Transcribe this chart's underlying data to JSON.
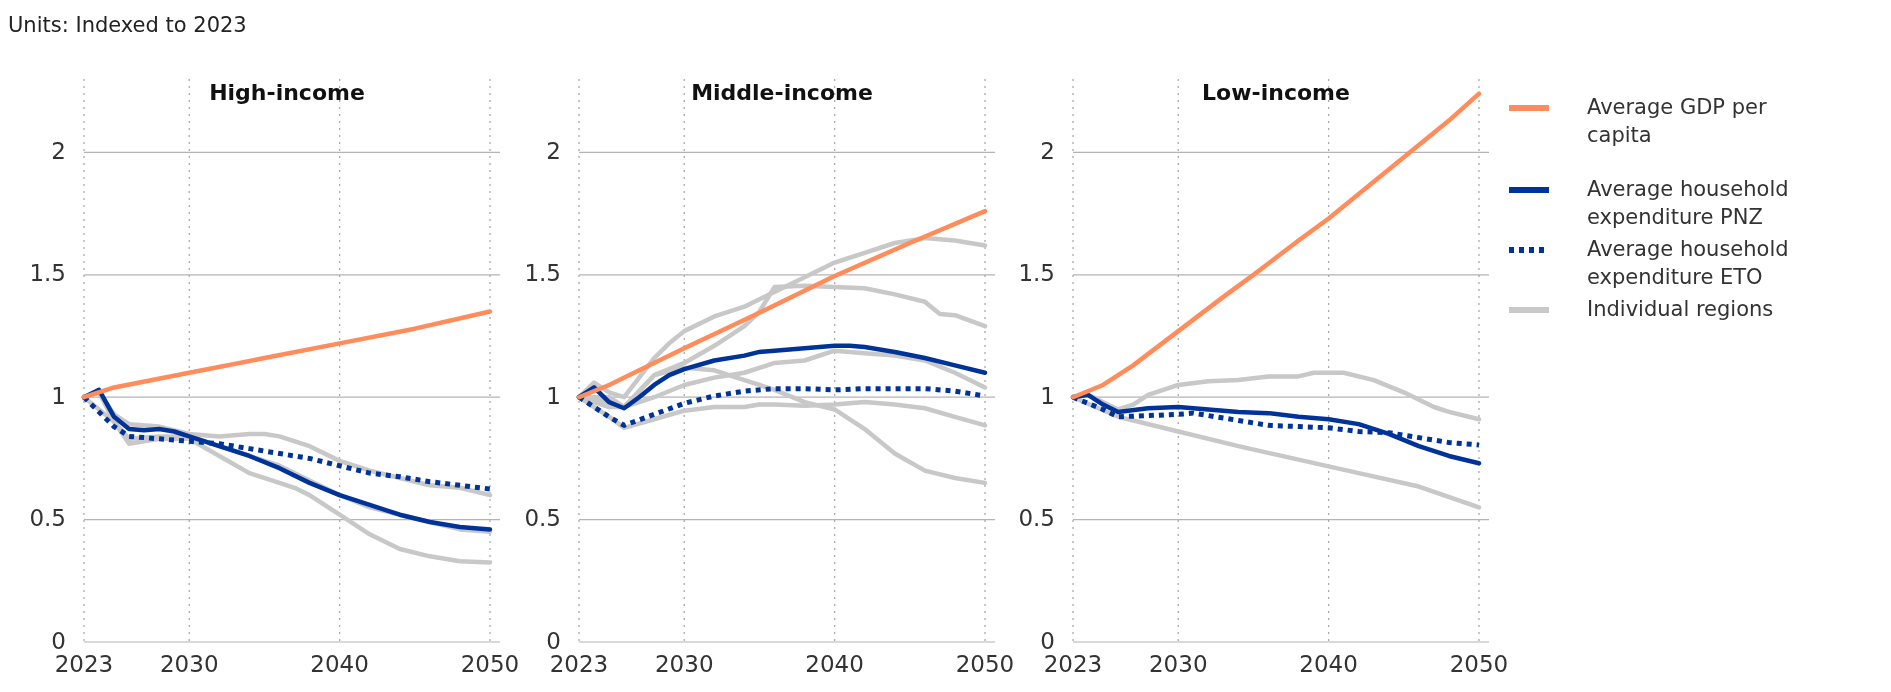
{
  "chart_data": [
    {
      "type": "line",
      "title": "High-income",
      "annotations": [
        "Units: Indexed to 2023"
      ],
      "xlim": [
        2023,
        2050
      ],
      "xticks": [
        2023,
        2030,
        2040,
        2050
      ],
      "ylim": [
        0,
        2.3
      ],
      "yticks": [
        0,
        0.5,
        1,
        1.5,
        2
      ],
      "grid": true,
      "series": [
        {
          "color": "#ff8c5a",
          "x": [
            2023,
            2025,
            2030,
            2035,
            2040,
            2045,
            2050
          ],
          "values": [
            1.0,
            1.04,
            1.1,
            1.16,
            1.22,
            1.28,
            1.35
          ]
        },
        {
          "color": "#003399",
          "x": [
            2023,
            2024,
            2025,
            2026,
            2027,
            2028,
            2029,
            2030,
            2032,
            2034,
            2036,
            2038,
            2040,
            2042,
            2044,
            2046,
            2048,
            2050
          ],
          "values": [
            1.0,
            1.03,
            0.92,
            0.87,
            0.865,
            0.87,
            0.86,
            0.84,
            0.8,
            0.76,
            0.71,
            0.65,
            0.6,
            0.56,
            0.52,
            0.49,
            0.47,
            0.46
          ]
        },
        {
          "color": "#003399",
          "line_style": "dotted",
          "x": [
            2023,
            2025,
            2026,
            2028,
            2030,
            2032,
            2034,
            2036,
            2038,
            2040,
            2042,
            2044,
            2046,
            2048,
            2050
          ],
          "values": [
            1.0,
            0.88,
            0.84,
            0.83,
            0.82,
            0.81,
            0.79,
            0.77,
            0.75,
            0.72,
            0.69,
            0.675,
            0.655,
            0.64,
            0.625
          ]
        },
        {
          "color": "#c8c8c8",
          "x": [
            2023,
            2024,
            2025,
            2026,
            2028,
            2030,
            2032,
            2034,
            2035,
            2036,
            2038,
            2040,
            2042,
            2044,
            2046,
            2048,
            2050
          ],
          "values": [
            1.0,
            1.02,
            0.93,
            0.89,
            0.88,
            0.85,
            0.84,
            0.85,
            0.85,
            0.84,
            0.8,
            0.74,
            0.7,
            0.67,
            0.64,
            0.63,
            0.6
          ]
        },
        {
          "color": "#c8c8c8",
          "x": [
            2023,
            2024,
            2025,
            2026,
            2028,
            2030,
            2032,
            2034,
            2036,
            2038,
            2040,
            2042,
            2044,
            2046,
            2048,
            2050
          ],
          "values": [
            1.0,
            1.02,
            0.9,
            0.83,
            0.84,
            0.84,
            0.8,
            0.76,
            0.72,
            0.66,
            0.6,
            0.55,
            0.52,
            0.49,
            0.46,
            0.45
          ]
        },
        {
          "color": "#c8c8c8",
          "x": [
            2023,
            2025,
            2026,
            2028,
            2030,
            2032,
            2034,
            2036,
            2037,
            2038,
            2040,
            2042,
            2044,
            2046,
            2048,
            2050
          ],
          "values": [
            1.0,
            0.9,
            0.81,
            0.83,
            0.83,
            0.76,
            0.69,
            0.65,
            0.63,
            0.6,
            0.52,
            0.44,
            0.38,
            0.35,
            0.33,
            0.325
          ]
        }
      ]
    },
    {
      "type": "line",
      "title": "Middle-income",
      "xlim": [
        2023,
        2050
      ],
      "xticks": [
        2023,
        2030,
        2040,
        2050
      ],
      "ylim": [
        0,
        2.3
      ],
      "yticks": [
        0,
        0.5,
        1,
        1.5,
        2
      ],
      "grid": true,
      "series": [
        {
          "color": "#ff8c5a",
          "x": [
            2023,
            2025,
            2030,
            2035,
            2040,
            2045,
            2050
          ],
          "values": [
            1.0,
            1.05,
            1.2,
            1.345,
            1.495,
            1.63,
            1.76
          ]
        },
        {
          "color": "#003399",
          "x": [
            2023,
            2024,
            2025,
            2026,
            2027,
            2028,
            2029,
            2030,
            2032,
            2034,
            2035,
            2036,
            2038,
            2040,
            2041,
            2042,
            2044,
            2046,
            2048,
            2050
          ],
          "values": [
            1.0,
            1.04,
            0.98,
            0.955,
            1.0,
            1.05,
            1.09,
            1.115,
            1.15,
            1.17,
            1.185,
            1.19,
            1.2,
            1.21,
            1.21,
            1.205,
            1.185,
            1.16,
            1.13,
            1.1
          ]
        },
        {
          "color": "#003399",
          "line_style": "dotted",
          "x": [
            2023,
            2025,
            2026,
            2028,
            2030,
            2032,
            2034,
            2036,
            2038,
            2040,
            2042,
            2044,
            2046,
            2048,
            2050
          ],
          "values": [
            1.0,
            0.92,
            0.885,
            0.93,
            0.975,
            1.005,
            1.025,
            1.035,
            1.035,
            1.03,
            1.035,
            1.035,
            1.035,
            1.025,
            1.005
          ]
        },
        {
          "color": "#c8c8c8",
          "x": [
            2023,
            2024,
            2025,
            2026,
            2027,
            2028,
            2029,
            2030,
            2032,
            2034,
            2036,
            2038,
            2040,
            2042,
            2044,
            2046,
            2048,
            2050
          ],
          "values": [
            1.0,
            1.06,
            1.02,
            1.0,
            1.08,
            1.16,
            1.22,
            1.27,
            1.33,
            1.37,
            1.43,
            1.49,
            1.55,
            1.59,
            1.63,
            1.65,
            1.64,
            1.62
          ]
        },
        {
          "color": "#c8c8c8",
          "x": [
            2023,
            2025,
            2026,
            2028,
            2030,
            2032,
            2034,
            2035,
            2036,
            2038,
            2040,
            2042,
            2044,
            2046,
            2047,
            2048,
            2050
          ],
          "values": [
            1.0,
            1.0,
            0.96,
            1.09,
            1.14,
            1.21,
            1.29,
            1.35,
            1.45,
            1.455,
            1.45,
            1.445,
            1.42,
            1.39,
            1.34,
            1.335,
            1.29
          ]
        },
        {
          "color": "#c8c8c8",
          "x": [
            2023,
            2025,
            2026,
            2028,
            2030,
            2032,
            2034,
            2036,
            2038,
            2040,
            2042,
            2044,
            2046,
            2048,
            2050
          ],
          "values": [
            1.0,
            0.98,
            0.96,
            1.0,
            1.05,
            1.08,
            1.1,
            1.14,
            1.15,
            1.19,
            1.18,
            1.17,
            1.15,
            1.1,
            1.04
          ]
        },
        {
          "color": "#c8c8c8",
          "x": [
            2023,
            2025,
            2026,
            2028,
            2030,
            2032,
            2034,
            2036,
            2038,
            2040,
            2042,
            2044,
            2046,
            2048,
            2050
          ],
          "values": [
            1.0,
            0.96,
            0.96,
            1.09,
            1.12,
            1.11,
            1.07,
            1.03,
            0.98,
            0.95,
            0.87,
            0.77,
            0.7,
            0.67,
            0.65
          ]
        },
        {
          "color": "#c8c8c8",
          "x": [
            2023,
            2025,
            2026,
            2028,
            2030,
            2032,
            2034,
            2035,
            2036,
            2038,
            2040,
            2042,
            2044,
            2046,
            2048,
            2050
          ],
          "values": [
            1.0,
            0.92,
            0.875,
            0.91,
            0.945,
            0.96,
            0.96,
            0.97,
            0.97,
            0.965,
            0.97,
            0.98,
            0.97,
            0.955,
            0.92,
            0.885
          ]
        }
      ]
    },
    {
      "type": "line",
      "title": "Low-income",
      "xlim": [
        2023,
        2050
      ],
      "xticks": [
        2023,
        2030,
        2040,
        2050
      ],
      "ylim": [
        0,
        2.3
      ],
      "yticks": [
        0,
        0.5,
        1,
        1.5,
        2
      ],
      "grid": true,
      "legend": "right",
      "series": [
        {
          "name": "Average GDP per capita",
          "color": "#ff8c5a",
          "x": [
            2023,
            2025,
            2027,
            2030,
            2033,
            2035,
            2038,
            2040,
            2043,
            2045,
            2048,
            2050
          ],
          "values": [
            1.0,
            1.05,
            1.13,
            1.27,
            1.41,
            1.5,
            1.64,
            1.73,
            1.88,
            1.98,
            2.13,
            2.24
          ]
        },
        {
          "name": "Average household expenditure PNZ",
          "color": "#003399",
          "x": [
            2023,
            2024,
            2025,
            2026,
            2028,
            2030,
            2032,
            2034,
            2036,
            2038,
            2040,
            2042,
            2044,
            2046,
            2048,
            2050
          ],
          "values": [
            1.0,
            1.01,
            0.97,
            0.94,
            0.955,
            0.96,
            0.95,
            0.94,
            0.935,
            0.92,
            0.91,
            0.89,
            0.85,
            0.8,
            0.76,
            0.73
          ]
        },
        {
          "name": "Average household expenditure ETO",
          "color": "#003399",
          "line_style": "dotted",
          "x": [
            2023,
            2025,
            2026,
            2028,
            2030,
            2031,
            2032,
            2034,
            2036,
            2038,
            2040,
            2042,
            2044,
            2046,
            2048,
            2050
          ],
          "values": [
            1.0,
            0.95,
            0.92,
            0.925,
            0.93,
            0.935,
            0.925,
            0.905,
            0.885,
            0.88,
            0.875,
            0.86,
            0.855,
            0.835,
            0.815,
            0.805
          ]
        },
        {
          "name": "Individual regions",
          "color": "#c8c8c8",
          "x": [
            2023,
            2024,
            2026,
            2027,
            2028,
            2030,
            2032,
            2034,
            2036,
            2038,
            2039,
            2041,
            2043,
            2045,
            2047,
            2048,
            2050
          ],
          "values": [
            1.0,
            1.01,
            0.95,
            0.97,
            1.01,
            1.05,
            1.065,
            1.07,
            1.085,
            1.085,
            1.1,
            1.1,
            1.07,
            1.02,
            0.96,
            0.94,
            0.91
          ]
        },
        {
          "color": "#c8c8c8",
          "x": [
            2023,
            2026,
            2030,
            2034,
            2038,
            2042,
            2046,
            2050
          ],
          "values": [
            1.0,
            0.92,
            0.86,
            0.8,
            0.745,
            0.69,
            0.635,
            0.55
          ]
        }
      ]
    }
  ]
}
